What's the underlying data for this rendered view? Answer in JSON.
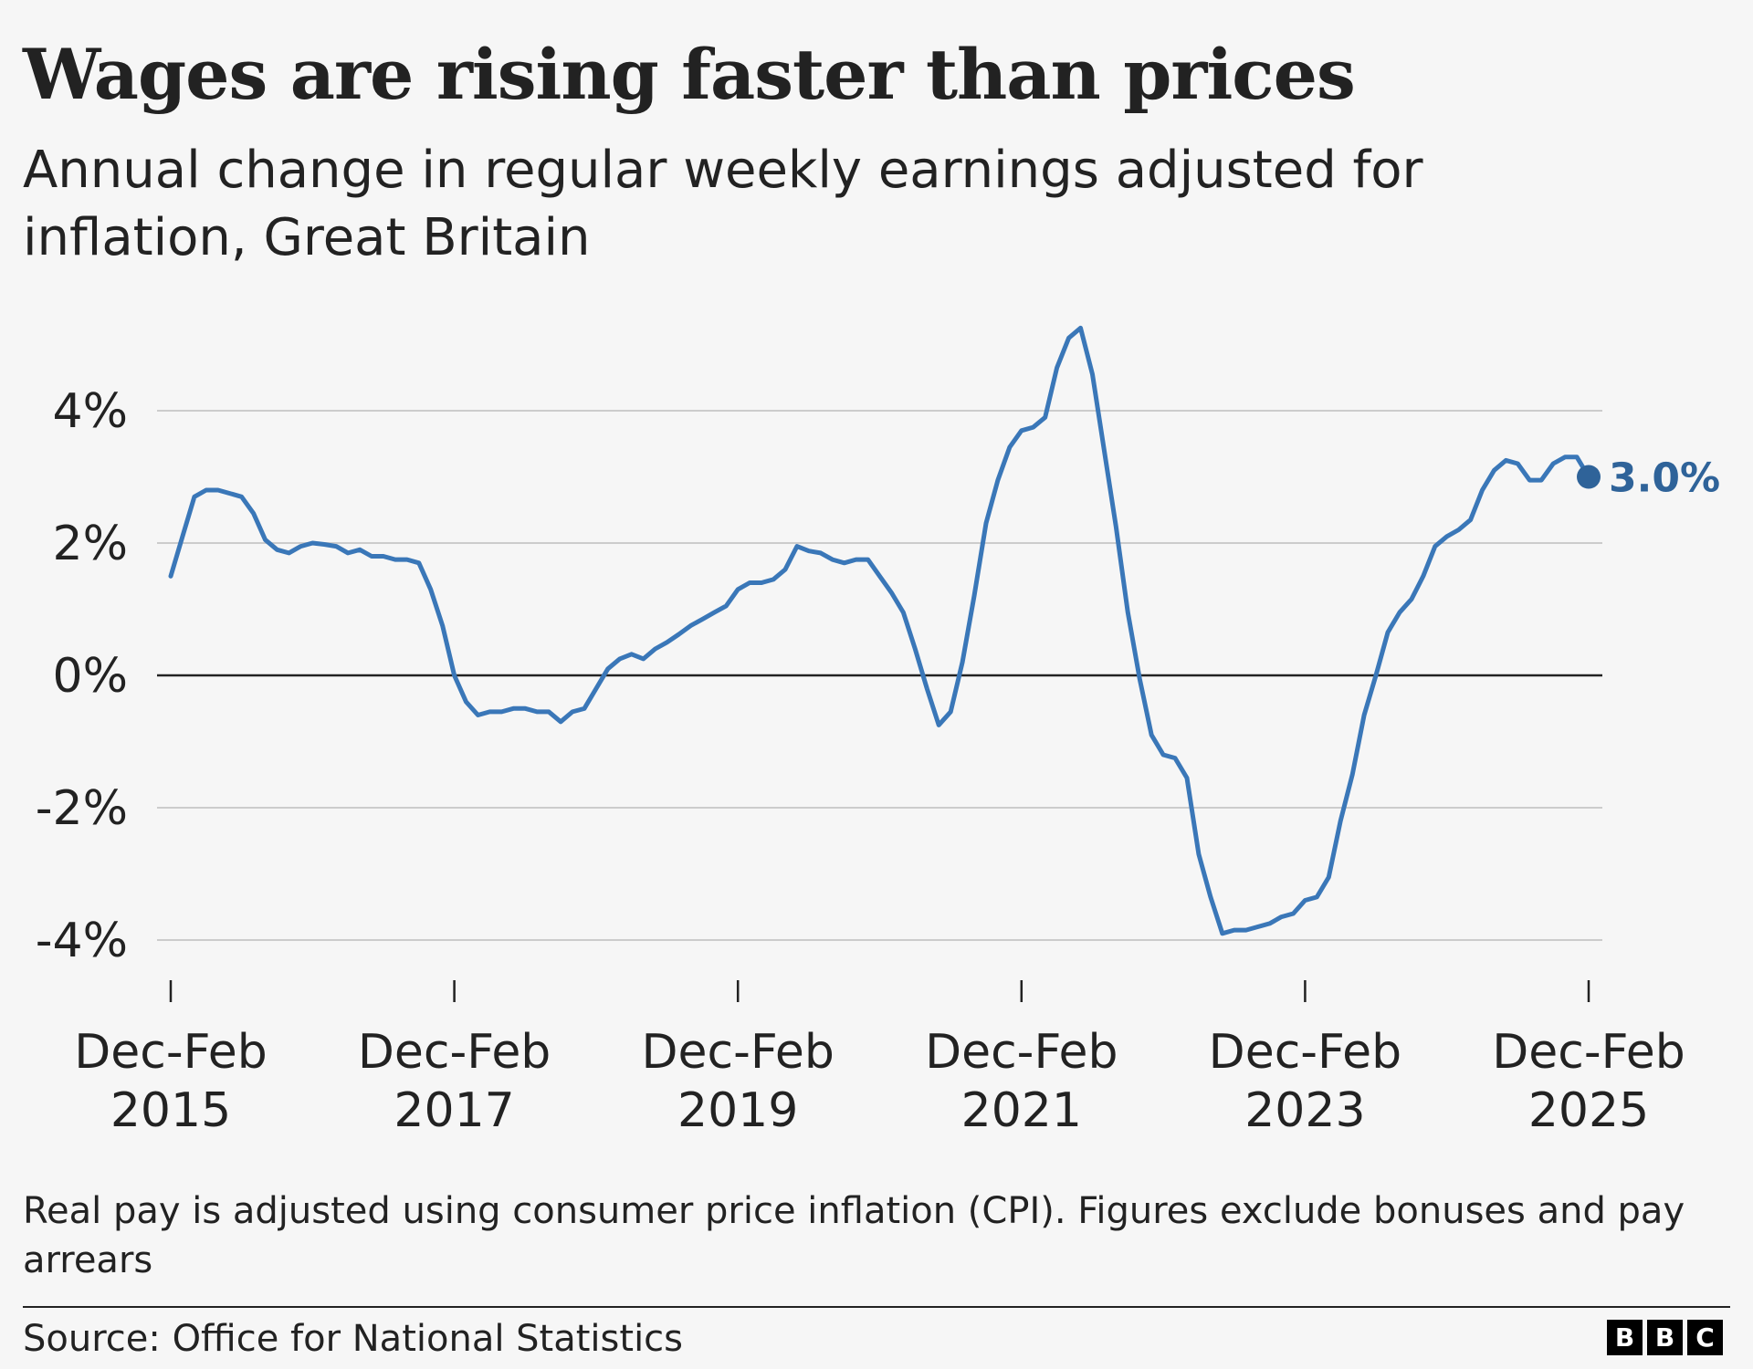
{
  "header": {
    "title": "Wages are rising faster than prices",
    "subtitle": "Annual change in regular weekly earnings adjusted for inflation, Great Britain"
  },
  "footer": {
    "note": "Real pay is adjusted using consumer price inflation (CPI). Figures exclude bonuses and pay arrears",
    "source": "Source: Office for National Statistics",
    "logo_letters": [
      "B",
      "B",
      "C"
    ]
  },
  "colors": {
    "line": "#3a77b8",
    "end_label": "#2f6399",
    "grid": "#cccccc",
    "zero_line": "#222222",
    "background": "#f6f6f6"
  },
  "chart_data": {
    "type": "line",
    "title": "Wages are rising faster than prices",
    "subtitle": "Annual change in regular weekly earnings adjusted for inflation, Great Britain",
    "xlabel": "",
    "ylabel": "",
    "ylim": [
      -4,
      5.3
    ],
    "yticks": [
      4,
      2,
      0,
      -2,
      -4
    ],
    "ytick_labels": [
      "4%",
      "2%",
      "0%",
      "-2%",
      "-4%"
    ],
    "xticks": [
      {
        "index": 0,
        "label": [
          "Dec-Feb",
          "2015"
        ]
      },
      {
        "index": 24,
        "label": [
          "Dec-Feb",
          "2017"
        ]
      },
      {
        "index": 48,
        "label": [
          "Dec-Feb",
          "2019"
        ]
      },
      {
        "index": 72,
        "label": [
          "Dec-Feb",
          "2021"
        ]
      },
      {
        "index": 96,
        "label": [
          "Dec-Feb",
          "2023"
        ]
      },
      {
        "index": 120,
        "label": [
          "Dec-Feb",
          "2025"
        ]
      }
    ],
    "grid": true,
    "end_label": "3.0%",
    "series": [
      {
        "values": [
          1.5,
          2.1,
          2.7,
          2.8,
          2.8,
          2.75,
          2.7,
          2.45,
          2.05,
          1.9,
          1.85,
          1.95,
          2.0,
          1.98,
          1.95,
          1.85,
          1.9,
          1.8,
          1.8,
          1.75,
          1.75,
          1.7,
          1.3,
          0.75,
          0.0,
          -0.4,
          -0.6,
          -0.55,
          -0.55,
          -0.5,
          -0.5,
          -0.55,
          -0.55,
          -0.7,
          -0.55,
          -0.5,
          -0.2,
          0.1,
          0.25,
          0.32,
          0.25,
          0.4,
          0.5,
          0.62,
          0.75,
          0.85,
          0.95,
          1.05,
          1.3,
          1.4,
          1.4,
          1.45,
          1.6,
          1.95,
          1.88,
          1.85,
          1.75,
          1.7,
          1.75,
          1.75,
          1.5,
          1.25,
          0.95,
          0.4,
          -0.2,
          -0.75,
          -0.55,
          0.2,
          1.2,
          2.3,
          2.95,
          3.45,
          3.7,
          3.75,
          3.9,
          4.65,
          5.1,
          5.25,
          4.55,
          3.4,
          2.25,
          0.95,
          -0.05,
          -0.9,
          -1.2,
          -1.25,
          -1.55,
          -2.7,
          -3.35,
          -3.9,
          -3.85,
          -3.85,
          -3.8,
          -3.75,
          -3.65,
          -3.6,
          -3.4,
          -3.35,
          -3.05,
          -2.2,
          -1.5,
          -0.6,
          0.0,
          0.65,
          0.95,
          1.15,
          1.5,
          1.95,
          2.1,
          2.2,
          2.35,
          2.8,
          3.1,
          3.25,
          3.2,
          2.95,
          2.95,
          3.2,
          3.3,
          3.3,
          3.0
        ]
      }
    ]
  }
}
